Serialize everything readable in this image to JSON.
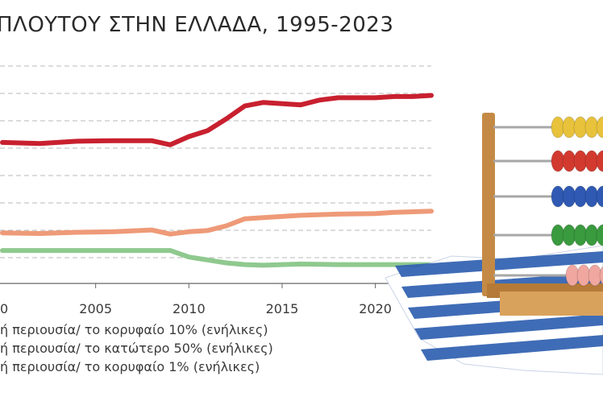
{
  "chart_data": {
    "type": "line",
    "title": "ΠΛΟΥΤΟΥ ΣΤΗΝ ΕΛΛΑΔΑ, 1995-2023",
    "x_ticks": [
      "2005",
      "2010",
      "2015",
      "2020"
    ],
    "x_partial_tick": "0",
    "xlim": [
      2000,
      2023
    ],
    "grid": true,
    "series": [
      {
        "name": "ή περιουσία/ το κορυφαίο 10% (ενήλικες)",
        "color": "#c8202f",
        "x": [
          2000,
          2002,
          2004,
          2006,
          2008,
          2009,
          2010,
          2011,
          2012,
          2013,
          2014,
          2015,
          2016,
          2017,
          2018,
          2020,
          2021,
          2022,
          2023
        ],
        "y": [
          0.6,
          0.598,
          0.602,
          0.603,
          0.603,
          0.596,
          0.61,
          0.62,
          0.64,
          0.662,
          0.668,
          0.666,
          0.664,
          0.672,
          0.676,
          0.676,
          0.678,
          0.678,
          0.68
        ]
      },
      {
        "name": "ή περιουσία/ το κατώτερο 50% (ενήλικες)",
        "color": "#ee9a78",
        "x": [
          2000,
          2002,
          2004,
          2006,
          2008,
          2009,
          2010,
          2011,
          2012,
          2013,
          2014,
          2016,
          2018,
          2020,
          2021,
          2022,
          2023
        ],
        "y": [
          0.446,
          0.445,
          0.447,
          0.448,
          0.451,
          0.444,
          0.448,
          0.45,
          0.458,
          0.47,
          0.472,
          0.476,
          0.478,
          0.479,
          0.481,
          0.482,
          0.483
        ]
      },
      {
        "name": "ή περιουσία/ το κορυφαίο 1% (ενήλικες)",
        "color": "#8fc98f",
        "x": [
          2000,
          2002,
          2004,
          2006,
          2008,
          2009,
          2010,
          2011,
          2012,
          2013,
          2014,
          2016,
          2018,
          2020,
          2021,
          2022,
          2023
        ],
        "y": [
          0.416,
          0.416,
          0.416,
          0.416,
          0.416,
          0.416,
          0.405,
          0.4,
          0.395,
          0.392,
          0.391,
          0.393,
          0.392,
          0.392,
          0.392,
          0.392,
          0.392
        ]
      }
    ]
  },
  "colors": {
    "grid": "#b8b8b8",
    "axis": "#666666",
    "flag_blue": "#2f5fb0",
    "frame_wood": "#c48a45"
  },
  "decor": {
    "image": "abacus-on-greek-flag",
    "beads_rows": [
      [
        "#e8c23a",
        "#e8c23a",
        "#e8c23a",
        "#e8c23a",
        "#e8c23a"
      ],
      [
        "#d23a2f",
        "#d23a2f",
        "#d23a2f",
        "#d23a2f",
        "#d23a2f"
      ],
      [
        "#2f59b3",
        "#2f59b3",
        "#2f59b3",
        "#2f59b3",
        "#2f59b3"
      ],
      [
        "#3a9a3e",
        "#3a9a3e",
        "#3a9a3e",
        "#3a9a3e",
        "#3a9a3e"
      ],
      [
        "#f0a7a0",
        "#f0a7a0",
        "#f0a7a0",
        "#f0a7a0"
      ]
    ]
  }
}
